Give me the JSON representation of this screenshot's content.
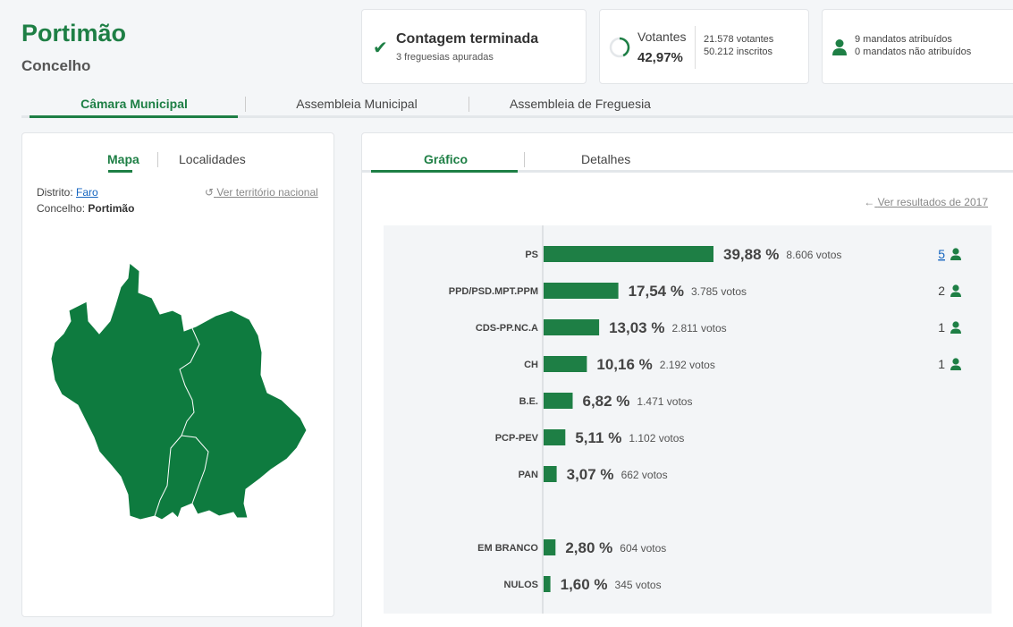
{
  "header": {
    "title": "Portimão",
    "subtitle": "Concelho"
  },
  "status": {
    "main": "Contagem terminada",
    "sub": "3 freguesias apuradas"
  },
  "voters": {
    "label": "Votantes",
    "percent": "42,97%",
    "percent_value": 42.97,
    "votes_line": "21.578 votantes",
    "registered_line": "50.212 inscritos"
  },
  "mandates": {
    "assigned": "9 mandatos atribuídos",
    "unassigned": "0 mandatos não atribuídos"
  },
  "main_tabs": [
    {
      "label": "Câmara Municipal"
    },
    {
      "label": "Assembleia Municipal"
    },
    {
      "label": "Assembleia de Freguesia"
    }
  ],
  "map_panel": {
    "tab_map": "Mapa",
    "tab_places": "Localidades",
    "district_label": "Distrito:",
    "district_value": "Faro",
    "council_label": "Concelho:",
    "council_value": "Portimão",
    "national_link": "Ver território nacional"
  },
  "chart_panel": {
    "tab_chart": "Gráfico",
    "tab_details": "Detalhes",
    "previous_link": "Ver resultados de 2017"
  },
  "colors": {
    "accent": "#1e7f45",
    "link": "#1565c0"
  },
  "chart_data": {
    "type": "bar",
    "orientation": "horizontal",
    "xlim": [
      0,
      100
    ],
    "categories": [
      "PS",
      "PPD/PSD.MPT.PPM",
      "CDS-PP.NC.A",
      "CH",
      "B.E.",
      "PCP-PEV",
      "PAN",
      "EM BRANCO",
      "NULOS"
    ],
    "values": [
      39.88,
      17.54,
      13.03,
      10.16,
      6.82,
      5.11,
      3.07,
      2.8,
      1.6
    ],
    "value_labels": [
      "39,88 %",
      "17,54 %",
      "13,03 %",
      "10,16 %",
      "6,82 %",
      "5,11 %",
      "3,07 %",
      "2,80 %",
      "1,60 %"
    ],
    "votes_labels": [
      "8.606 votos",
      "3.785 votos",
      "2.811 votos",
      "2.192 votos",
      "1.471 votos",
      "1.102 votos",
      "662 votos",
      "604 votos",
      "345 votos"
    ],
    "mandates": [
      "5",
      "2",
      "1",
      "1",
      "",
      "",
      "",
      "",
      ""
    ],
    "gap_before_index": 7
  }
}
